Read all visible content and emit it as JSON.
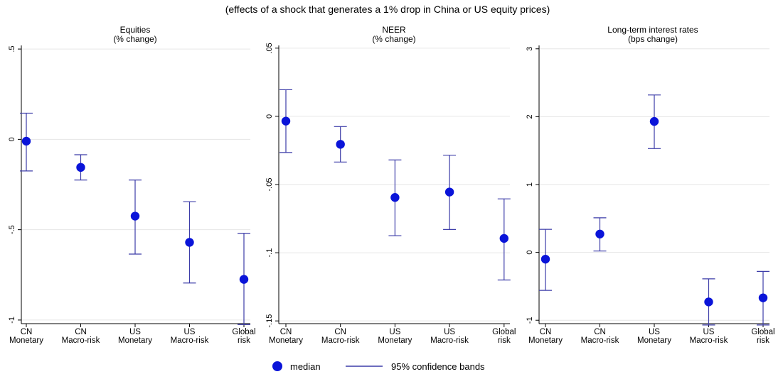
{
  "figure": {
    "title": "(effects of a shock that generates a 1% drop in China or US equity prices)"
  },
  "legend": {
    "median_label": "median",
    "band_label": "95% confidence bands"
  },
  "colors": {
    "marker": "#0a14d9",
    "errorbar": "#3c3ca8",
    "grid": "#e6e6e6",
    "axis": "#000000"
  },
  "chart_data": [
    {
      "type": "scatter",
      "title": "Equities",
      "subtitle": "(% change)",
      "categories": [
        [
          "CN",
          "Monetary"
        ],
        [
          "CN",
          "Macro-risk"
        ],
        [
          "US",
          "Monetary"
        ],
        [
          "US",
          "Macro-risk"
        ],
        [
          "Global",
          "risk"
        ]
      ],
      "ylim": [
        -1.02,
        0.52
      ],
      "yticks": [
        0.5,
        0,
        -0.5,
        -1
      ],
      "yticklabels": [
        ".5",
        "0",
        "-.5",
        "-1"
      ],
      "grid": "horizontal",
      "median": [
        -0.01,
        -0.155,
        -0.425,
        -0.57,
        -0.775
      ],
      "lower": [
        -0.175,
        -0.225,
        -0.635,
        -0.795,
        -1.025
      ],
      "upper": [
        0.145,
        -0.085,
        -0.225,
        -0.345,
        -0.52
      ]
    },
    {
      "type": "scatter",
      "title": "NEER",
      "subtitle": "(% change)",
      "categories": [
        [
          "CN",
          "Monetary"
        ],
        [
          "CN",
          "Macro-risk"
        ],
        [
          "US",
          "Monetary"
        ],
        [
          "US",
          "Macro-risk"
        ],
        [
          "Global",
          "risk"
        ]
      ],
      "ylim": [
        -0.152,
        0.052
      ],
      "yticks": [
        0.05,
        0,
        -0.05,
        -0.1,
        -0.15
      ],
      "yticklabels": [
        ".05",
        "0",
        "-.05",
        "-.1",
        "-.15"
      ],
      "grid": "horizontal",
      "median": [
        -0.0035,
        -0.0205,
        -0.0595,
        -0.0555,
        -0.0895
      ],
      "lower": [
        -0.0265,
        -0.0335,
        -0.0875,
        -0.083,
        -0.12
      ],
      "upper": [
        0.0195,
        -0.0075,
        -0.032,
        -0.0285,
        -0.0605
      ]
    },
    {
      "type": "scatter",
      "title": "Long-term interest rates",
      "subtitle": "(bps change)",
      "categories": [
        [
          "CN",
          "Monetary"
        ],
        [
          "CN",
          "Macro-risk"
        ],
        [
          "US",
          "Monetary"
        ],
        [
          "US",
          "Macro-risk"
        ],
        [
          "Global",
          "risk"
        ]
      ],
      "ylim": [
        -1.05,
        3.05
      ],
      "yticks": [
        3,
        2,
        1,
        0,
        -1
      ],
      "yticklabels": [
        "3",
        "2",
        "1",
        "0",
        "-1"
      ],
      "grid": "horizontal",
      "median": [
        -0.1,
        0.27,
        1.93,
        -0.73,
        -0.67
      ],
      "lower": [
        -0.56,
        0.02,
        1.53,
        -1.07,
        -1.07
      ],
      "upper": [
        0.34,
        0.51,
        2.32,
        -0.39,
        -0.28
      ]
    }
  ]
}
